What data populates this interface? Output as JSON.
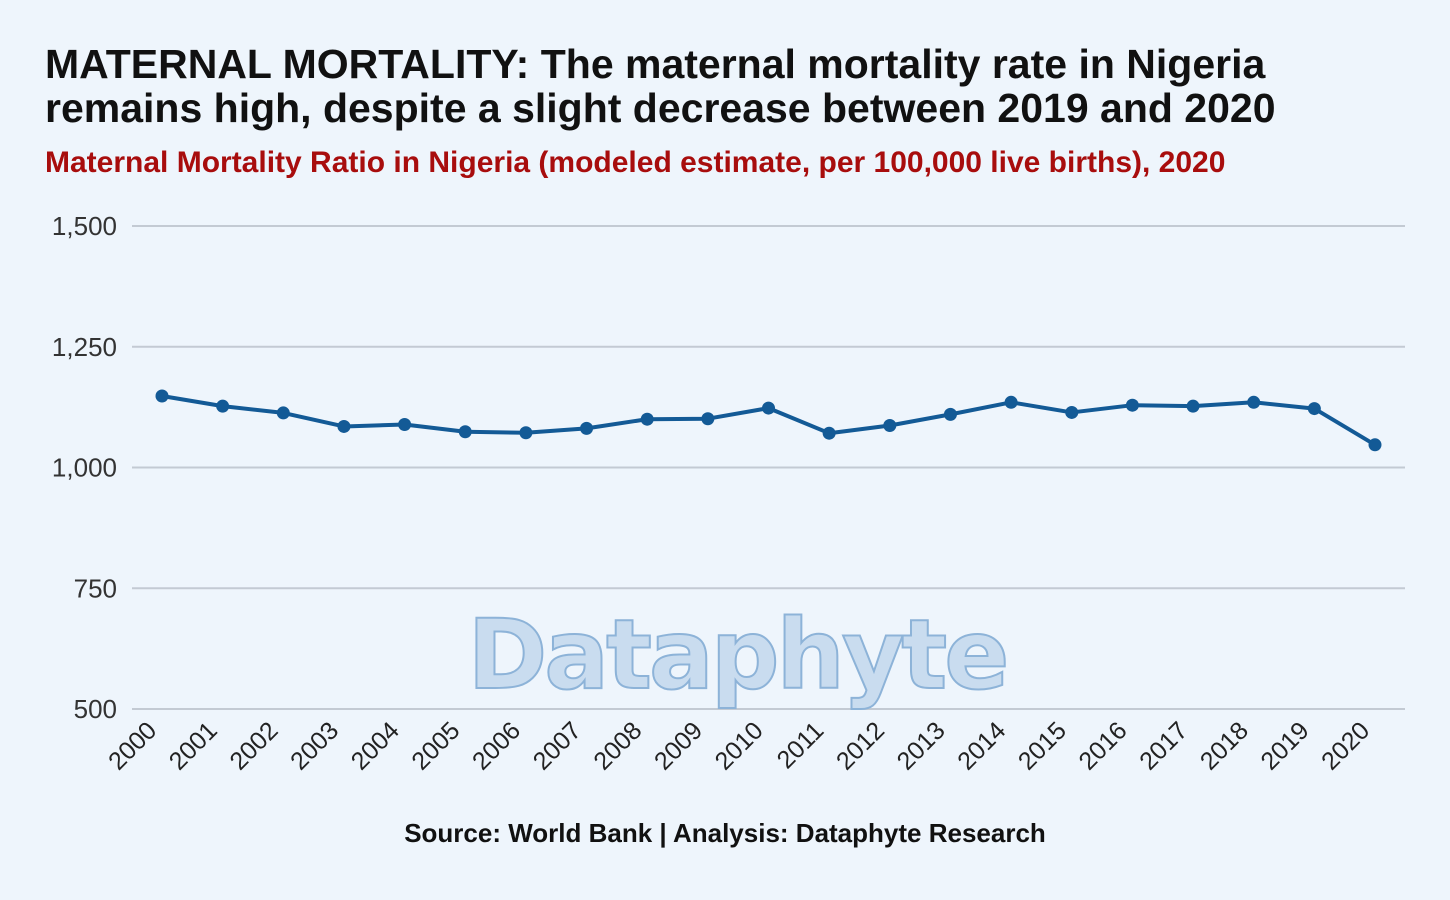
{
  "header": {
    "title": "MATERNAL MORTALITY: The maternal mortality rate in Nigeria remains high, despite a slight decrease between 2019 and 2020",
    "subtitle": "Maternal Mortality Ratio in Nigeria (modeled estimate, per 100,000 live births), 2020"
  },
  "footer": {
    "source": "Source: World Bank | Analysis: Dataphyte Research"
  },
  "watermark": "Dataphyte",
  "colors": {
    "line": "#135a96",
    "grid": "#c3cad3",
    "title": "#111111",
    "subtitle": "#a80d0d",
    "background": "#eef5fc"
  },
  "chart_data": {
    "type": "line",
    "x": [
      "2000",
      "2001",
      "2002",
      "2003",
      "2004",
      "2005",
      "2006",
      "2007",
      "2008",
      "2009",
      "2010",
      "2011",
      "2012",
      "2013",
      "2014",
      "2015",
      "2016",
      "2017",
      "2018",
      "2019",
      "2020"
    ],
    "series": [
      {
        "values": [
          1148,
          1127,
          1113,
          1085,
          1089,
          1074,
          1072,
          1081,
          1100,
          1101,
          1123,
          1071,
          1087,
          1110,
          1135,
          1114,
          1129,
          1127,
          1135,
          1122,
          1047
        ]
      }
    ],
    "yticks": [
      500,
      750,
      1000,
      1250,
      1500
    ],
    "ytick_labels": [
      "500",
      "750",
      "1,000",
      "1,250",
      "1,500"
    ],
    "ylim": [
      500,
      1500
    ],
    "grid": "horizontal",
    "legend": "none"
  }
}
